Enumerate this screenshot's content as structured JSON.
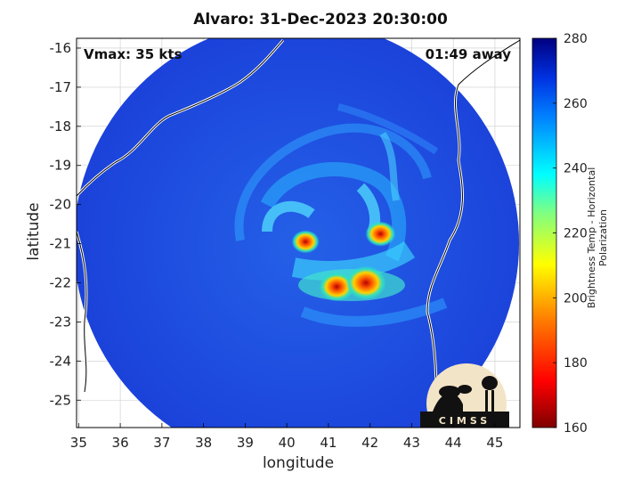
{
  "title": "Alvaro: 31-Dec-2023 20:30:00",
  "annotations": {
    "vmax": "Vmax: 35 kts",
    "time_away": "01:49 away"
  },
  "colorbar": {
    "label": "Brightness Temp - Horizontal Polarization",
    "min": 160,
    "max": 280,
    "ticks": [
      160,
      180,
      200,
      220,
      240,
      260,
      280
    ]
  },
  "logo": {
    "text": "CIMSS"
  },
  "chart_data": {
    "type": "heatmap",
    "xlabel": "longitude",
    "ylabel": "latitude",
    "xlim": [
      34.95,
      45.6
    ],
    "ylim": [
      -25.7,
      -15.75
    ],
    "xticks": [
      35,
      36,
      37,
      38,
      39,
      40,
      41,
      42,
      43,
      44,
      45
    ],
    "yticks": [
      -16,
      -17,
      -18,
      -19,
      -20,
      -21,
      -22,
      -23,
      -24,
      -25
    ],
    "grid": true,
    "colors": {
      "background": "#1c3fd0",
      "deep": "#0a2ad6",
      "outer": "#1540e0"
    },
    "hotspots": [
      {
        "lon": 40.45,
        "lat": -20.95,
        "tb": 190
      },
      {
        "lon": 42.25,
        "lat": -20.75,
        "tb": 192
      },
      {
        "lon": 41.2,
        "lat": -22.1,
        "tb": 196
      },
      {
        "lon": 41.9,
        "lat": -22.0,
        "tb": 200
      }
    ]
  }
}
